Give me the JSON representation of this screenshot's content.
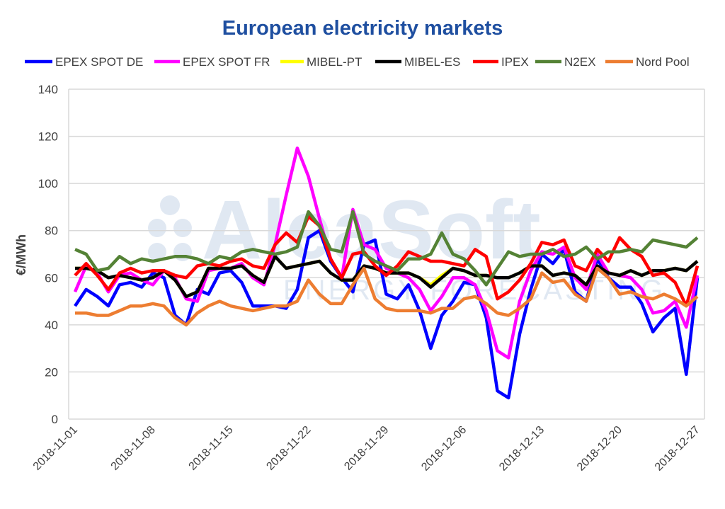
{
  "chart_data": {
    "type": "line",
    "title": "European electricity markets",
    "xlabel": "",
    "ylabel": "€/MWh",
    "ylim": [
      0,
      140
    ],
    "yticks": [
      0,
      20,
      40,
      60,
      80,
      100,
      120,
      140
    ],
    "xtick_labels": [
      "2018-11-01",
      "2018-11-08",
      "2018-11-15",
      "2018-11-22",
      "2018-11-29",
      "2018-12-06",
      "2018-12-13",
      "2018-12-20",
      "2018-12-27"
    ],
    "grid": "horizontal",
    "legend_position": "top",
    "watermark": {
      "line1": "AleaSoft",
      "line2": "ENERGY FORECASTING"
    },
    "x": [
      "2018-11-01",
      "2018-11-02",
      "2018-11-03",
      "2018-11-04",
      "2018-11-05",
      "2018-11-06",
      "2018-11-07",
      "2018-11-08",
      "2018-11-09",
      "2018-11-10",
      "2018-11-11",
      "2018-11-12",
      "2018-11-13",
      "2018-11-14",
      "2018-11-15",
      "2018-11-16",
      "2018-11-17",
      "2018-11-18",
      "2018-11-19",
      "2018-11-20",
      "2018-11-21",
      "2018-11-22",
      "2018-11-23",
      "2018-11-24",
      "2018-11-25",
      "2018-11-26",
      "2018-11-27",
      "2018-11-28",
      "2018-11-29",
      "2018-11-30",
      "2018-12-01",
      "2018-12-02",
      "2018-12-03",
      "2018-12-04",
      "2018-12-05",
      "2018-12-06",
      "2018-12-07",
      "2018-12-08",
      "2018-12-09",
      "2018-12-10",
      "2018-12-11",
      "2018-12-12",
      "2018-12-13",
      "2018-12-14",
      "2018-12-15",
      "2018-12-16",
      "2018-12-17",
      "2018-12-18",
      "2018-12-19",
      "2018-12-20",
      "2018-12-21",
      "2018-12-22",
      "2018-12-23",
      "2018-12-24",
      "2018-12-25",
      "2018-12-26",
      "2018-12-27"
    ],
    "series": [
      {
        "name": "EPEX SPOT DE",
        "color": "#0000ff",
        "values": [
          48,
          55,
          52,
          48,
          57,
          58,
          56,
          62,
          60,
          44,
          40,
          55,
          53,
          62,
          63,
          58,
          48,
          48,
          48,
          47,
          55,
          77,
          80,
          67,
          60,
          54,
          74,
          76,
          53,
          51,
          57,
          46,
          30,
          44,
          50,
          58,
          57,
          43,
          12,
          9,
          36,
          55,
          70,
          66,
          72,
          54,
          50,
          68,
          60,
          56,
          56,
          49,
          37,
          43,
          47,
          19,
          60
        ]
      },
      {
        "name": "EPEX SPOT FR",
        "color": "#ff00ff",
        "values": [
          54,
          65,
          62,
          54,
          61,
          62,
          59,
          57,
          63,
          60,
          51,
          50,
          63,
          64,
          64,
          66,
          60,
          57,
          74,
          95,
          115,
          103,
          85,
          68,
          60,
          89,
          74,
          72,
          64,
          62,
          60,
          55,
          46,
          52,
          60,
          60,
          57,
          46,
          29,
          26,
          50,
          63,
          71,
          70,
          73,
          60,
          55,
          70,
          62,
          61,
          60,
          55,
          45,
          46,
          50,
          39,
          61
        ]
      },
      {
        "name": "MIBEL-PT",
        "color": "#ffff00",
        "values": [
          64,
          64,
          63,
          60,
          61,
          60,
          59,
          60,
          63,
          59,
          52,
          54,
          64,
          64,
          64,
          65,
          61,
          58,
          69,
          64,
          65,
          66,
          67,
          62,
          59,
          59,
          65,
          64,
          62,
          62,
          62,
          60,
          57,
          61,
          64,
          63,
          61,
          61,
          60,
          60,
          62,
          65,
          65,
          61,
          62,
          61,
          57,
          65,
          62,
          61,
          63,
          61,
          63,
          63,
          64,
          63,
          67
        ]
      },
      {
        "name": "MIBEL-ES",
        "color": "#000000",
        "values": [
          64,
          64,
          63,
          60,
          61,
          60,
          59,
          60,
          63,
          59,
          52,
          54,
          64,
          64,
          64,
          65,
          61,
          58,
          69,
          64,
          65,
          66,
          67,
          62,
          59,
          59,
          65,
          64,
          62,
          62,
          62,
          60,
          56,
          60,
          64,
          63,
          61,
          61,
          60,
          60,
          62,
          65,
          65,
          61,
          62,
          61,
          57,
          65,
          62,
          61,
          63,
          61,
          63,
          63,
          64,
          63,
          67
        ]
      },
      {
        "name": "IPEX",
        "color": "#ff0000",
        "values": [
          61,
          66,
          61,
          55,
          62,
          64,
          62,
          63,
          63,
          61,
          60,
          65,
          66,
          65,
          67,
          68,
          65,
          64,
          74,
          79,
          75,
          86,
          82,
          68,
          60,
          70,
          71,
          65,
          61,
          65,
          71,
          69,
          67,
          67,
          66,
          65,
          72,
          69,
          51,
          54,
          59,
          66,
          75,
          74,
          76,
          65,
          63,
          72,
          67,
          77,
          72,
          69,
          61,
          62,
          58,
          48,
          65
        ]
      },
      {
        "name": "N2EX",
        "color": "#548235",
        "values": [
          72,
          70,
          63,
          64,
          69,
          66,
          68,
          67,
          68,
          69,
          69,
          68,
          66,
          69,
          68,
          71,
          72,
          71,
          70,
          71,
          73,
          88,
          82,
          72,
          71,
          88,
          70,
          67,
          65,
          63,
          68,
          68,
          70,
          79,
          70,
          68,
          63,
          57,
          64,
          71,
          69,
          70,
          70,
          72,
          69,
          70,
          73,
          68,
          71,
          71,
          72,
          71,
          76,
          75,
          74,
          73,
          77
        ]
      },
      {
        "name": "Nord Pool",
        "color": "#ed7d31",
        "values": [
          45,
          45,
          44,
          44,
          46,
          48,
          48,
          49,
          48,
          43,
          40,
          45,
          48,
          50,
          48,
          47,
          46,
          47,
          48,
          48,
          50,
          59,
          53,
          49,
          49,
          57,
          64,
          51,
          47,
          46,
          46,
          46,
          45,
          47,
          47,
          51,
          52,
          49,
          45,
          44,
          47,
          51,
          62,
          58,
          59,
          53,
          50,
          64,
          60,
          53,
          54,
          52,
          51,
          53,
          51,
          48,
          52
        ]
      }
    ]
  }
}
